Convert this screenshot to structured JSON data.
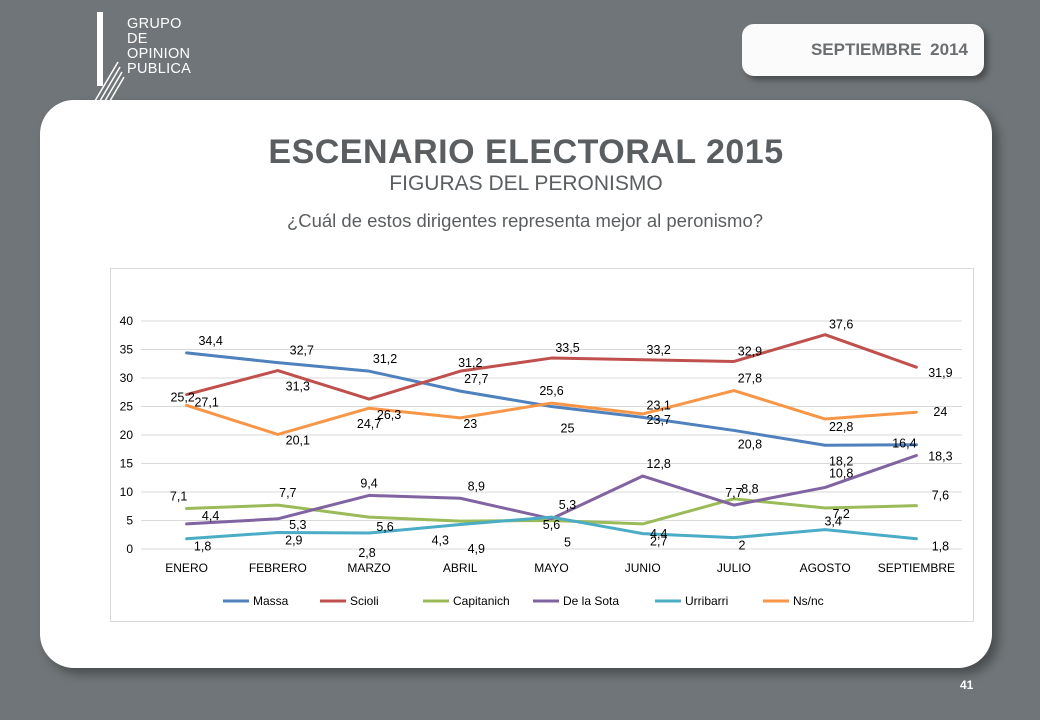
{
  "header": {
    "logo_lines": [
      "GRUPO",
      "DE",
      "OPINION",
      "PUBLICA"
    ],
    "date_badge": "SEPTIEMBRE 2014"
  },
  "slide": {
    "title": "ESCENARIO ELECTORAL 2015",
    "subtitle": "FIGURAS DEL PERONISMO",
    "question": "¿Cuál de estos dirigentes representa mejor al peronismo?",
    "page_number": "41"
  },
  "chart_data": {
    "type": "line",
    "categories": [
      "ENERO",
      "FEBRERO",
      "MARZO",
      "ABRIL",
      "MAYO",
      "JUNIO",
      "JULIO",
      "AGOSTO",
      "SEPTIEMBRE"
    ],
    "ylim": [
      0,
      40
    ],
    "yticks": [
      0,
      5,
      10,
      15,
      20,
      25,
      30,
      35,
      40
    ],
    "grid": true,
    "legend_position": "bottom",
    "series": [
      {
        "name": "Massa",
        "color": "#4f81bd",
        "values": [
          34.4,
          32.7,
          31.2,
          27.7,
          25,
          23.1,
          20.8,
          18.2,
          18.3
        ],
        "labels": [
          "34,4",
          "32,7",
          "31,2",
          "27,7",
          "25",
          "23,1",
          "20,8",
          "18,2",
          "18,3"
        ]
      },
      {
        "name": "Scioli",
        "color": "#c0504d",
        "values": [
          27.1,
          31.3,
          26.3,
          31.2,
          33.5,
          33.2,
          32.9,
          37.6,
          31.9
        ],
        "labels": [
          "27,1",
          "31,3",
          "26,3",
          "31,2",
          "33,5",
          "33,2",
          "32,9",
          "37,6",
          "31,9"
        ]
      },
      {
        "name": "Capitanich",
        "color": "#9bbb59",
        "values": [
          7.1,
          7.7,
          5.6,
          4.9,
          5,
          4.4,
          8.8,
          7.2,
          7.6
        ],
        "labels": [
          "7,1",
          "7,7",
          "5,6",
          "4,9",
          "5",
          "4,4",
          "8,8",
          "7,2",
          "7,6"
        ]
      },
      {
        "name": "De la Sota",
        "color": "#8064a2",
        "values": [
          4.4,
          5.3,
          9.4,
          8.9,
          5.3,
          12.8,
          7.7,
          10.8,
          16.4
        ],
        "labels": [
          "4,4",
          "5,3",
          "9,4",
          "8,9",
          "5,3",
          "12,8",
          "7,7",
          "10,8",
          "16,4"
        ]
      },
      {
        "name": "Urribarri",
        "color": "#4bacc6",
        "values": [
          1.8,
          2.9,
          2.8,
          4.3,
          5.6,
          2.7,
          2,
          3.4,
          1.8
        ],
        "labels": [
          "1,8",
          "2,9",
          "2,8",
          "4,3",
          "5,6",
          "2,7",
          "2",
          "3,4",
          "1,8"
        ]
      },
      {
        "name": "Ns/nc",
        "color": "#f79646",
        "values": [
          25.2,
          20.1,
          24.7,
          23,
          25.6,
          23.7,
          27.8,
          22.8,
          24
        ],
        "labels": [
          "25,2",
          "20,1",
          "24,7",
          "23",
          "25,6",
          "23,7",
          "27,8",
          "22,8",
          "24"
        ]
      }
    ]
  }
}
